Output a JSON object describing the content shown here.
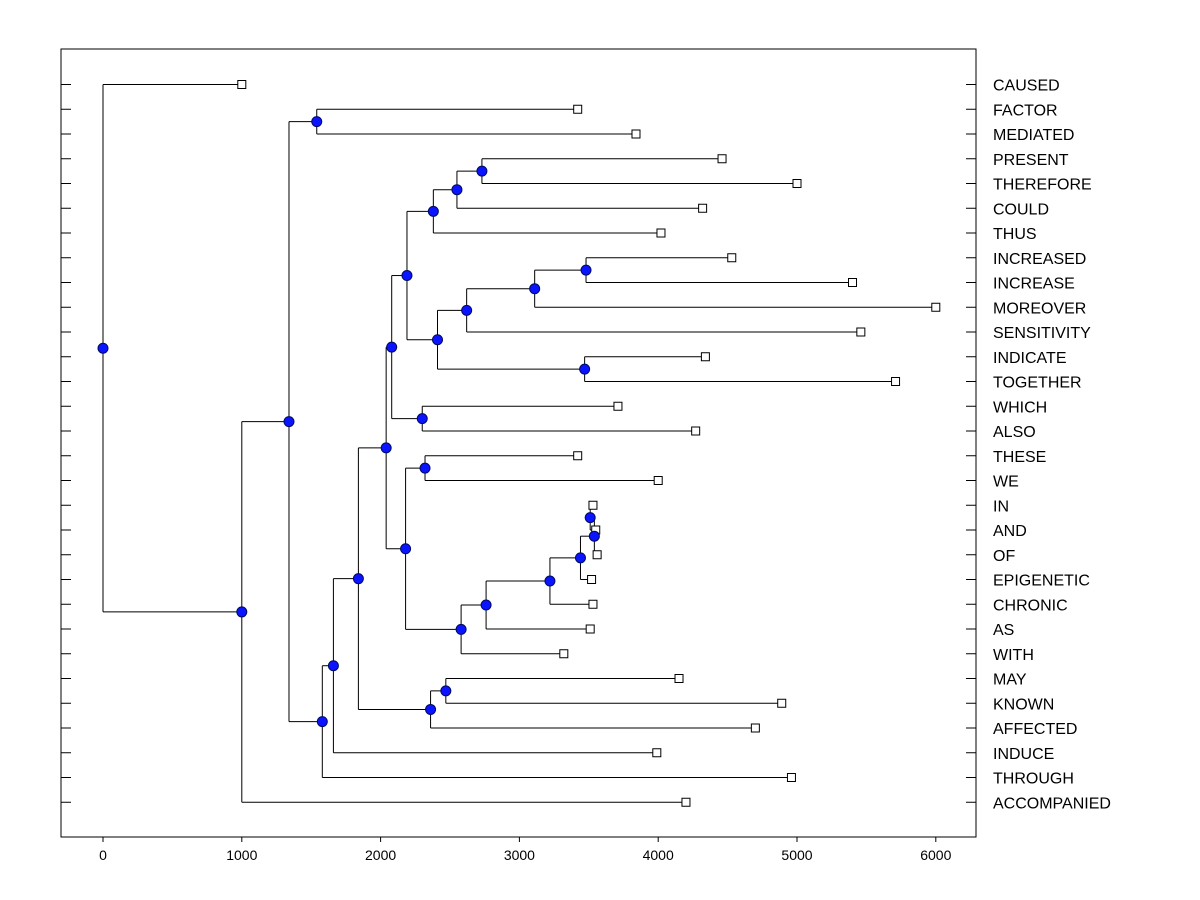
{
  "chart_data": {
    "type": "dendrogram",
    "orientation": "horizontal",
    "xlim": [
      -300,
      6300
    ],
    "x_ticks": [
      0,
      1000,
      2000,
      3000,
      4000,
      5000,
      6000
    ],
    "x_tick_labels": [
      "0",
      "1000",
      "2000",
      "3000",
      "4000",
      "5000",
      "6000"
    ],
    "leaves": [
      {
        "label": "CAUSED",
        "value": 1000
      },
      {
        "label": "FACTOR",
        "value": 3420
      },
      {
        "label": "MEDIATED",
        "value": 3840
      },
      {
        "label": "PRESENT",
        "value": 4460
      },
      {
        "label": "THEREFORE",
        "value": 5000
      },
      {
        "label": "COULD",
        "value": 4320
      },
      {
        "label": "THUS",
        "value": 4020
      },
      {
        "label": "INCREASED",
        "value": 4530
      },
      {
        "label": "INCREASE",
        "value": 5400
      },
      {
        "label": "MOREOVER",
        "value": 6000
      },
      {
        "label": "SENSITIVITY",
        "value": 5460
      },
      {
        "label": "INDICATE",
        "value": 4340
      },
      {
        "label": "TOGETHER",
        "value": 5710
      },
      {
        "label": "WHICH",
        "value": 3710
      },
      {
        "label": "ALSO",
        "value": 4270
      },
      {
        "label": "THESE",
        "value": 3420
      },
      {
        "label": "WE",
        "value": 4000
      },
      {
        "label": "IN",
        "value": 3530
      },
      {
        "label": "AND",
        "value": 3550
      },
      {
        "label": "OF",
        "value": 3560
      },
      {
        "label": "EPIGENETIC",
        "value": 3520
      },
      {
        "label": "CHRONIC",
        "value": 3530
      },
      {
        "label": "AS",
        "value": 3510
      },
      {
        "label": "WITH",
        "value": 3320
      },
      {
        "label": "MAY",
        "value": 4150
      },
      {
        "label": "KNOWN",
        "value": 4890
      },
      {
        "label": "AFFECTED",
        "value": 4700
      },
      {
        "label": "INDUCE",
        "value": 3990
      },
      {
        "label": "THROUGH",
        "value": 4960
      },
      {
        "label": "ACCOMPANIED",
        "value": 4200
      }
    ],
    "merges": [
      {
        "id": "n_in_and",
        "value": 3510,
        "children": [
          "IN",
          "AND"
        ]
      },
      {
        "id": "n_in_and_of",
        "value": 3540,
        "children": [
          "n_in_and",
          "OF"
        ]
      },
      {
        "id": "n_iao_epi",
        "value": 3440,
        "children": [
          "n_in_and_of",
          "EPIGENETIC"
        ]
      },
      {
        "id": "n_epi_chronic",
        "value": 3220,
        "children": [
          "n_iao_epi",
          "CHRONIC"
        ]
      },
      {
        "id": "n_chr_as",
        "value": 2760,
        "children": [
          "n_epi_chronic",
          "AS"
        ]
      },
      {
        "id": "n_as_with",
        "value": 2580,
        "children": [
          "n_chr_as",
          "WITH"
        ]
      },
      {
        "id": "n_these_we",
        "value": 2320,
        "children": [
          "THESE",
          "WE"
        ]
      },
      {
        "id": "n_tw_core",
        "value": 2180,
        "children": [
          "n_these_we",
          "n_as_with"
        ]
      },
      {
        "id": "n_present_therefore",
        "value": 2730,
        "children": [
          "PRESENT",
          "THEREFORE"
        ]
      },
      {
        "id": "n_pt_could",
        "value": 2550,
        "children": [
          "n_present_therefore",
          "COULD"
        ]
      },
      {
        "id": "n_ptc_thus",
        "value": 2380,
        "children": [
          "n_pt_could",
          "THUS"
        ]
      },
      {
        "id": "n_increased_increase",
        "value": 3480,
        "children": [
          "INCREASED",
          "INCREASE"
        ]
      },
      {
        "id": "n_inc_moreover",
        "value": 3110,
        "children": [
          "n_increased_increase",
          "MOREOVER"
        ]
      },
      {
        "id": "n_incm_sens",
        "value": 2620,
        "children": [
          "n_inc_moreover",
          "SENSITIVITY"
        ]
      },
      {
        "id": "n_indicate_together",
        "value": 3470,
        "children": [
          "INDICATE",
          "TOGETHER"
        ]
      },
      {
        "id": "n_sens_ind",
        "value": 2410,
        "children": [
          "n_incm_sens",
          "n_indicate_together"
        ]
      },
      {
        "id": "n_thus_sens",
        "value": 2190,
        "children": [
          "n_ptc_thus",
          "n_sens_ind"
        ]
      },
      {
        "id": "n_which_also",
        "value": 2300,
        "children": [
          "WHICH",
          "ALSO"
        ]
      },
      {
        "id": "n_upper_mid",
        "value": 2080,
        "children": [
          "n_thus_sens",
          "n_which_also"
        ]
      },
      {
        "id": "n_mid",
        "value": 2040,
        "children": [
          "n_upper_mid",
          "n_tw_core"
        ]
      },
      {
        "id": "n_may_known",
        "value": 2470,
        "children": [
          "MAY",
          "KNOWN"
        ]
      },
      {
        "id": "n_mk_affected",
        "value": 2360,
        "children": [
          "n_may_known",
          "AFFECTED"
        ]
      },
      {
        "id": "n_mid_affected",
        "value": 1840,
        "children": [
          "n_mid",
          "n_mk_affected"
        ]
      },
      {
        "id": "n_mid_induce",
        "value": 1660,
        "children": [
          "n_mid_affected",
          "INDUCE"
        ]
      },
      {
        "id": "n_mid_through",
        "value": 1580,
        "children": [
          "n_mid_induce",
          "THROUGH"
        ]
      },
      {
        "id": "n_factor_mediated",
        "value": 1540,
        "children": [
          "FACTOR",
          "MEDIATED"
        ]
      },
      {
        "id": "n_big",
        "value": 1340,
        "children": [
          "n_factor_mediated",
          "n_mid_through"
        ]
      },
      {
        "id": "n_big_accompanied",
        "value": 1000,
        "children": [
          "n_big",
          "ACCOMPANIED"
        ]
      },
      {
        "id": "n_root",
        "value": 0,
        "children": [
          "CAUSED",
          "n_big_accompanied"
        ]
      }
    ],
    "colors": {
      "node_fill": "#0a14ff",
      "node_stroke": "#000a60",
      "leaf_fill": "#ffffff",
      "line": "#000000"
    }
  }
}
